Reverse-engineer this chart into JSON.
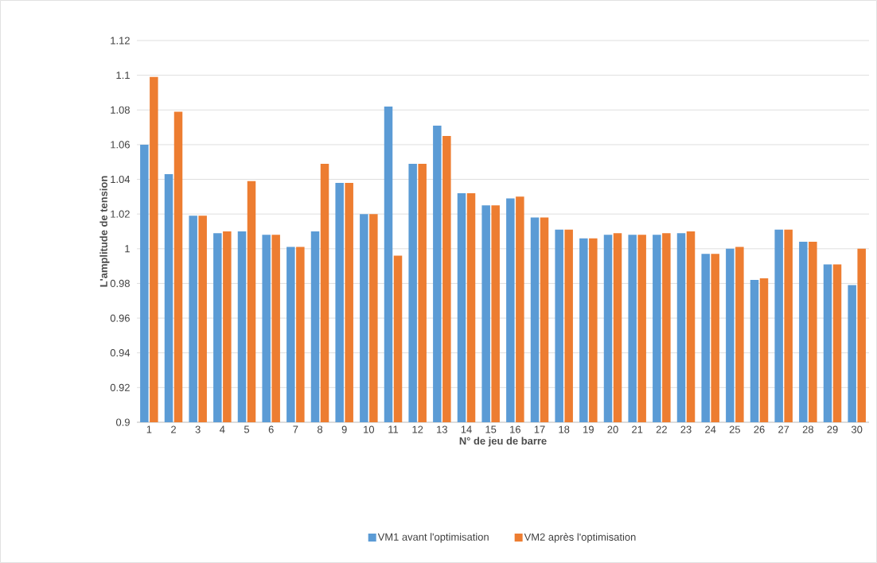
{
  "chart_data": {
    "type": "bar",
    "xlabel": "N° de jeu de barre",
    "ylabel": "L'amplitude de tension",
    "categories": [
      "1",
      "2",
      "3",
      "4",
      "5",
      "6",
      "7",
      "8",
      "9",
      "10",
      "11",
      "12",
      "13",
      "14",
      "15",
      "16",
      "17",
      "18",
      "19",
      "20",
      "21",
      "22",
      "23",
      "24",
      "25",
      "26",
      "27",
      "28",
      "29",
      "30"
    ],
    "series": [
      {
        "name": "VM1 avant l'optimisation",
        "color": "#5b9bd5",
        "values": [
          1.06,
          1.043,
          1.019,
          1.009,
          1.01,
          1.008,
          1.001,
          1.01,
          1.038,
          1.02,
          1.082,
          1.049,
          1.071,
          1.032,
          1.025,
          1.029,
          1.018,
          1.011,
          1.006,
          1.008,
          1.008,
          1.008,
          1.009,
          0.997,
          1.0,
          0.982,
          1.011,
          1.004,
          0.991,
          0.979
        ]
      },
      {
        "name": "VM2 après l'optimisation",
        "color": "#ed7d31",
        "values": [
          1.099,
          1.079,
          1.019,
          1.01,
          1.039,
          1.008,
          1.001,
          1.049,
          1.038,
          1.02,
          0.996,
          1.049,
          1.065,
          1.032,
          1.025,
          1.03,
          1.018,
          1.011,
          1.006,
          1.009,
          1.008,
          1.009,
          1.01,
          0.997,
          1.001,
          0.983,
          1.011,
          1.004,
          0.991,
          1.0
        ]
      }
    ],
    "ylim": [
      0.9,
      1.12
    ],
    "yticks": [
      0.9,
      0.92,
      0.94,
      0.96,
      0.98,
      1,
      1.02,
      1.04,
      1.06,
      1.08,
      1.1,
      1.12
    ],
    "grid": "y",
    "legend": "bottom"
  }
}
